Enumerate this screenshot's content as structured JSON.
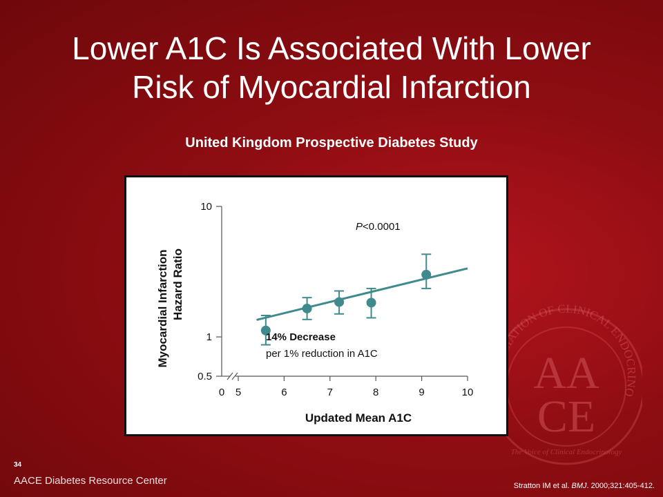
{
  "title": {
    "line1": "Lower A1C Is Associated With Lower",
    "line2": "Risk of Myocardial Infarction"
  },
  "subtitle": "United Kingdom Prospective Diabetes Study",
  "chart_data": {
    "type": "scatter",
    "xlabel": "Updated Mean A1C",
    "ylabel_line1": "Myocardial Infarction",
    "ylabel_line2": "Hazard Ratio",
    "x_tick_labels": [
      "0",
      "5",
      "6",
      "7",
      "8",
      "9",
      "10"
    ],
    "x_ticks": [
      5,
      6,
      7,
      8,
      9,
      10
    ],
    "xlim": [
      5,
      10
    ],
    "y_scale": "log",
    "y_tick_labels": [
      "0.5",
      "1",
      "10"
    ],
    "y_ticks": [
      0.5,
      1,
      10
    ],
    "ylim": [
      0.5,
      10
    ],
    "axis_break": "x-axis near origin",
    "points": [
      {
        "x": 5.6,
        "y": 1.12,
        "lower": 0.87,
        "upper": 1.46
      },
      {
        "x": 6.5,
        "y": 1.65,
        "lower": 1.36,
        "upper": 2.0
      },
      {
        "x": 7.2,
        "y": 1.85,
        "lower": 1.5,
        "upper": 2.25
      },
      {
        "x": 7.9,
        "y": 1.83,
        "lower": 1.4,
        "upper": 2.35
      },
      {
        "x": 9.1,
        "y": 3.0,
        "lower": 2.35,
        "upper": 4.3
      }
    ],
    "trend_line": {
      "x": [
        5.4,
        10.0
      ],
      "y": [
        1.35,
        3.35
      ]
    },
    "marker_color": "#3f8a8c",
    "annotations": {
      "p_value_italic": "P",
      "p_value_rest": "<0.0001",
      "decrease_bold": "14% Decrease",
      "decrease_detail": "per 1% reduction in A1C"
    }
  },
  "footer": {
    "slide_number": "34",
    "brand": "AACE Diabetes Resource Center",
    "citation_authors": "Stratton IM et al. ",
    "citation_journal": "BMJ",
    "citation_rest": ". 2000;321:405-412."
  },
  "seal_text": {
    "letters_top": "AA",
    "letters_bottom": "CE",
    "ring": "ASSOCIATION OF CLINICAL ENDOCRINOLOGISTS",
    "motto": "The Voice of Clinical Endocrinology"
  }
}
